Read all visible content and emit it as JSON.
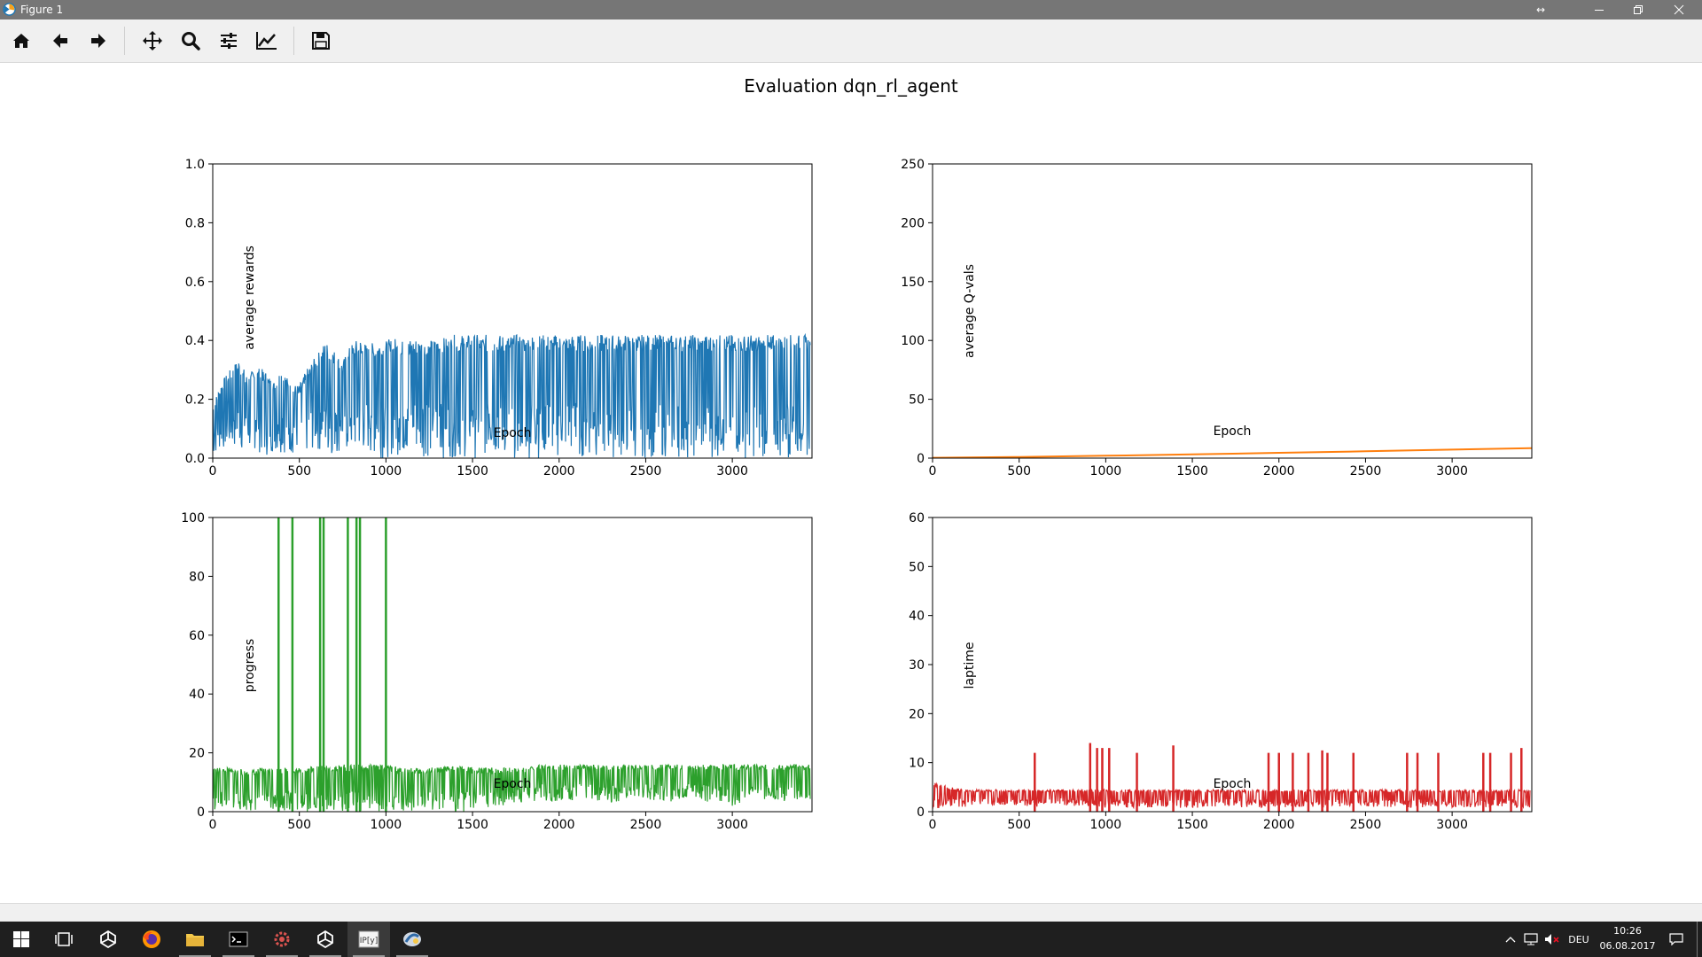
{
  "window": {
    "title": "Figure 1",
    "controls": {
      "resize": "↔"
    }
  },
  "toolbar": {
    "buttons": [
      {
        "name": "home-button",
        "icon": "home-icon"
      },
      {
        "name": "back-button",
        "icon": "arrow-left-icon"
      },
      {
        "name": "forward-button",
        "icon": "arrow-right-icon"
      },
      {
        "name": "pan-button",
        "icon": "move-icon"
      },
      {
        "name": "zoom-button",
        "icon": "magnifier-icon"
      },
      {
        "name": "subplots-button",
        "icon": "sliders-icon"
      },
      {
        "name": "edit-axes-button",
        "icon": "chart-line-icon"
      },
      {
        "name": "save-button",
        "icon": "floppy-disk-icon"
      }
    ]
  },
  "figure": {
    "suptitle": "Evaluation dqn_rl_agent"
  },
  "chart_data": [
    {
      "type": "line",
      "ylabel": "average rewards",
      "xlabel": "Epoch",
      "xlim": [
        0,
        3460
      ],
      "ylim": [
        0,
        1.0
      ],
      "xticks": [
        "0",
        "500",
        "1000",
        "1500",
        "2000",
        "2500",
        "3000"
      ],
      "yticks": [
        "0.0",
        "0.2",
        "0.4",
        "0.6",
        "0.8",
        "1.0"
      ],
      "color": "#1f77b4",
      "series": [
        {
          "x": [
            0,
            50,
            100,
            150,
            200,
            250,
            300,
            350,
            400,
            450,
            500,
            550,
            600,
            650,
            700,
            750,
            800,
            850,
            900,
            950,
            1000,
            1050,
            1100,
            1150,
            1200,
            1250,
            1300,
            1350,
            1400,
            1450,
            1500,
            1550,
            1600,
            1650,
            1700,
            1750,
            1800,
            1850,
            1900,
            1950,
            2000,
            2050,
            2100,
            2150,
            2200,
            2250,
            2300,
            2350,
            2400,
            2450,
            2500,
            2550,
            2600,
            2650,
            2700,
            2750,
            2800,
            2850,
            2900,
            2950,
            3000,
            3050,
            3100,
            3150,
            3200,
            3250,
            3300,
            3350,
            3400,
            3450
          ],
          "y_max": [
            0.18,
            0.26,
            0.3,
            0.34,
            0.28,
            0.31,
            0.3,
            0.26,
            0.31,
            0.25,
            0.25,
            0.31,
            0.35,
            0.4,
            0.37,
            0.33,
            0.39,
            0.41,
            0.38,
            0.41,
            0.4,
            0.41,
            0.4,
            0.41,
            0.41,
            0.4,
            0.41,
            0.41,
            0.42,
            0.42,
            0.42,
            0.42,
            0.42,
            0.42,
            0.42,
            0.42,
            0.42,
            0.42,
            0.42,
            0.42,
            0.42,
            0.42,
            0.42,
            0.42,
            0.42,
            0.42,
            0.42,
            0.42,
            0.42,
            0.42,
            0.42,
            0.42,
            0.42,
            0.42,
            0.42,
            0.42,
            0.42,
            0.42,
            0.42,
            0.42,
            0.42,
            0.42,
            0.42,
            0.42,
            0.42,
            0.42,
            0.42,
            0.42,
            0.42,
            0.42
          ],
          "y_min": [
            0.0,
            0.03,
            0.02,
            0.03,
            0.01,
            0.03,
            0.0,
            0.02,
            0.02,
            0.01,
            0.02,
            0.01,
            0.03,
            0.0,
            0.01,
            0.02,
            0.0,
            0.01,
            0.01,
            0.0,
            0.0,
            0.01,
            0.0,
            0.0,
            0.01,
            0.0,
            0.0,
            0.0,
            0.0,
            0.0,
            0.0,
            0.0,
            0.0,
            0.0,
            0.0,
            0.0,
            0.0,
            0.0,
            0.0,
            0.0,
            0.0,
            0.0,
            0.0,
            0.0,
            0.0,
            0.0,
            0.0,
            0.0,
            0.0,
            0.0,
            0.0,
            0.0,
            0.0,
            0.0,
            0.0,
            0.0,
            0.0,
            0.0,
            0.0,
            0.0,
            0.0,
            0.0,
            0.0,
            0.0,
            0.0,
            0.0,
            0.0,
            0.0,
            0.0,
            0.0
          ]
        }
      ]
    },
    {
      "type": "line",
      "ylabel": "average Q-vals",
      "xlabel": "Epoch",
      "xlim": [
        0,
        3460
      ],
      "ylim": [
        0,
        250
      ],
      "xticks": [
        "0",
        "500",
        "1000",
        "1500",
        "2000",
        "2500",
        "3000"
      ],
      "yticks": [
        "0",
        "50",
        "100",
        "150",
        "200",
        "250"
      ],
      "color": "#ff7f0e",
      "series": [
        {
          "x": [
            0,
            500,
            1000,
            1500,
            2000,
            2500,
            3000,
            3460
          ],
          "y": [
            0.3,
            1.0,
            2.0,
            3.2,
            4.5,
            5.8,
            7.2,
            8.5
          ]
        }
      ]
    },
    {
      "type": "line",
      "ylabel": "progress",
      "xlabel": "Epoch",
      "xlim": [
        0,
        3460
      ],
      "ylim": [
        0,
        100
      ],
      "xticks": [
        "0",
        "500",
        "1000",
        "1500",
        "2000",
        "2500",
        "3000"
      ],
      "yticks": [
        "0",
        "20",
        "40",
        "60",
        "80",
        "100"
      ],
      "color": "#2ca02c",
      "series": [
        {
          "x": [
            0,
            100,
            200,
            300,
            400,
            500,
            600,
            700,
            800,
            900,
            1000,
            1100,
            1200,
            1300,
            1400,
            1500,
            1600,
            1700,
            1800,
            1900,
            2000,
            2100,
            2200,
            2300,
            2400,
            2500,
            2600,
            2700,
            2800,
            2900,
            3000,
            3100,
            3200,
            3300,
            3400,
            3450
          ],
          "y_max": [
            15,
            15,
            14,
            15,
            15,
            15,
            16,
            16,
            16,
            16,
            16,
            15,
            15,
            15,
            16,
            15,
            15,
            15,
            15,
            16,
            16,
            16,
            16,
            16,
            16,
            16,
            16,
            16,
            16,
            16,
            16,
            16,
            16,
            16,
            16,
            16
          ],
          "y_min": [
            0,
            1,
            0,
            1,
            0,
            0,
            0,
            0,
            0,
            0,
            0,
            0,
            0,
            0,
            0,
            0,
            1,
            2,
            3,
            4,
            3,
            4,
            4,
            3,
            4,
            4,
            3,
            4,
            4,
            3,
            2,
            4,
            4,
            3,
            4,
            3
          ],
          "spikes": [
            {
              "x": 380,
              "y": 100
            },
            {
              "x": 460,
              "y": 100
            },
            {
              "x": 620,
              "y": 100
            },
            {
              "x": 640,
              "y": 100
            },
            {
              "x": 780,
              "y": 100
            },
            {
              "x": 830,
              "y": 100
            },
            {
              "x": 850,
              "y": 100
            },
            {
              "x": 1000,
              "y": 100
            }
          ]
        }
      ]
    },
    {
      "type": "line",
      "ylabel": "laptime",
      "xlabel": "Epoch",
      "xlim": [
        0,
        3460
      ],
      "ylim": [
        0,
        60
      ],
      "xticks": [
        "0",
        "500",
        "1000",
        "1500",
        "2000",
        "2500",
        "3000"
      ],
      "yticks": [
        "0",
        "10",
        "20",
        "30",
        "40",
        "50",
        "60"
      ],
      "color": "#d62728",
      "series": [
        {
          "x": [
            0,
            100,
            200,
            300,
            400,
            500,
            600,
            700,
            800,
            900,
            1000,
            1100,
            1200,
            1300,
            1400,
            1500,
            1600,
            1700,
            1800,
            1900,
            2000,
            2100,
            2200,
            2300,
            2400,
            2500,
            2600,
            2700,
            2800,
            2900,
            3000,
            3100,
            3200,
            3300,
            3400,
            3450
          ],
          "y_max": [
            6,
            5,
            4.5,
            4.5,
            4.5,
            4.5,
            4.5,
            4.5,
            4.5,
            4.5,
            4.5,
            4.5,
            4.5,
            4.5,
            4.5,
            4.5,
            4.5,
            4.5,
            4.5,
            4.5,
            4.5,
            4.5,
            4.5,
            4.5,
            4.5,
            4.5,
            4.5,
            4.5,
            4.5,
            4.5,
            4.5,
            4.5,
            4.5,
            4.5,
            4.5,
            4.5
          ],
          "y_min": [
            0.3,
            1.0,
            1.0,
            1.2,
            1.3,
            1.2,
            1.0,
            1.3,
            1.2,
            1.0,
            0.8,
            0.8,
            0.8,
            1.0,
            0.8,
            0.8,
            0.8,
            1.0,
            0.8,
            0.8,
            0.8,
            1.0,
            0.8,
            0.8,
            0.8,
            1.0,
            0.8,
            0.8,
            0.8,
            1.0,
            0.8,
            0.8,
            0.8,
            1.0,
            0.8,
            0.8
          ],
          "spikes": [
            {
              "x": 590,
              "y": 12
            },
            {
              "x": 910,
              "y": 14
            },
            {
              "x": 950,
              "y": 13
            },
            {
              "x": 980,
              "y": 13
            },
            {
              "x": 1020,
              "y": 13
            },
            {
              "x": 1180,
              "y": 12
            },
            {
              "x": 1390,
              "y": 13.5
            },
            {
              "x": 1940,
              "y": 12
            },
            {
              "x": 2000,
              "y": 12
            },
            {
              "x": 2080,
              "y": 12
            },
            {
              "x": 2170,
              "y": 12
            },
            {
              "x": 2250,
              "y": 12.5
            },
            {
              "x": 2280,
              "y": 12
            },
            {
              "x": 2430,
              "y": 12
            },
            {
              "x": 2740,
              "y": 12
            },
            {
              "x": 2800,
              "y": 12
            },
            {
              "x": 2920,
              "y": 12
            },
            {
              "x": 3180,
              "y": 12
            },
            {
              "x": 3220,
              "y": 12
            },
            {
              "x": 3340,
              "y": 12
            },
            {
              "x": 3400,
              "y": 13
            }
          ]
        }
      ]
    }
  ],
  "taskbar": {
    "items": [
      {
        "name": "task-view-icon"
      },
      {
        "name": "unity-icon"
      },
      {
        "name": "firefox-icon"
      },
      {
        "name": "file-explorer-icon"
      },
      {
        "name": "command-prompt-icon"
      },
      {
        "name": "app-gear-icon"
      },
      {
        "name": "unity-icon"
      },
      {
        "name": "ipython-icon"
      },
      {
        "name": "python-icon"
      }
    ],
    "language": "DEU",
    "time": "10:26",
    "date": "06.08.2017"
  }
}
